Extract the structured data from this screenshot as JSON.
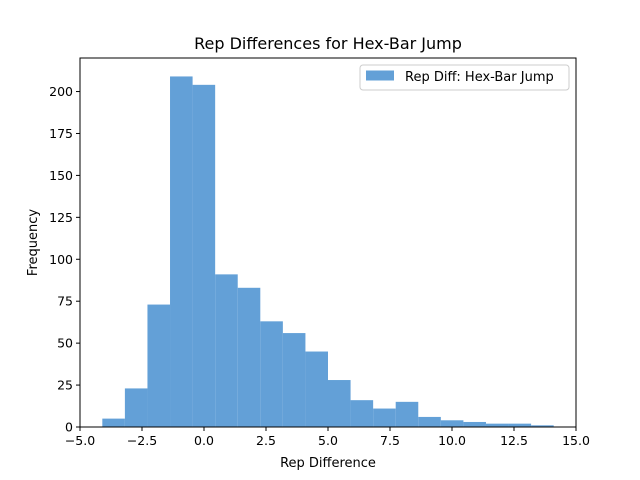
{
  "chart_data": {
    "type": "bar",
    "subtype": "histogram",
    "title": "Rep Differences for Hex-Bar Jump",
    "xlabel": "Rep Difference",
    "ylabel": "Frequency",
    "xlim": [
      -5.0,
      15.0
    ],
    "ylim": [
      0,
      220
    ],
    "xticks": [
      -5.0,
      -2.5,
      0.0,
      2.5,
      5.0,
      7.5,
      10.0,
      12.5,
      15.0
    ],
    "xtick_labels": [
      "−5.0",
      "−2.5",
      "0.0",
      "2.5",
      "5.0",
      "7.5",
      "10.0",
      "12.5",
      "15.0"
    ],
    "yticks": [
      0,
      25,
      50,
      75,
      100,
      125,
      150,
      175,
      200
    ],
    "ytick_labels": [
      "0",
      "25",
      "50",
      "75",
      "100",
      "125",
      "150",
      "175",
      "200"
    ],
    "grid": false,
    "legend_position": "top-right",
    "series": [
      {
        "name": "Rep Diff: Hex-Bar Jump",
        "color": "#5b9bd5",
        "bin_edges": [
          -4.1,
          -3.19,
          -2.28,
          -1.37,
          -0.46,
          0.45,
          1.36,
          2.27,
          3.18,
          4.09,
          5.0,
          5.91,
          6.82,
          7.73,
          8.64,
          9.55,
          10.46,
          11.37,
          12.28,
          13.19,
          14.1
        ],
        "counts": [
          5,
          23,
          73,
          209,
          204,
          91,
          83,
          63,
          56,
          45,
          28,
          16,
          11,
          15,
          6,
          4,
          3,
          2,
          2,
          1
        ]
      }
    ]
  }
}
